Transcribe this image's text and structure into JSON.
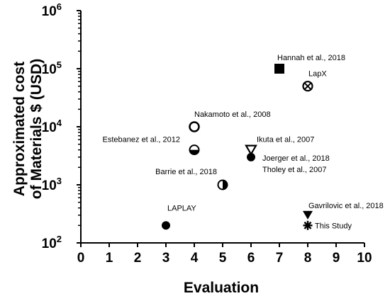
{
  "chart_data": {
    "type": "scatter",
    "title": "",
    "xlabel": "Evaluation",
    "ylabel_lines": [
      "Approximated cost",
      "of Materials $ (USD)"
    ],
    "xlim": [
      0,
      10
    ],
    "ylim": [
      100,
      1000000
    ],
    "yscale": "log",
    "x_ticks": [
      "0",
      "1",
      "2",
      "3",
      "4",
      "5",
      "6",
      "7",
      "8",
      "9",
      "10"
    ],
    "y_ticks": [
      {
        "base": "10",
        "exp": "2",
        "value": 100
      },
      {
        "base": "10",
        "exp": "3",
        "value": 1000
      },
      {
        "base": "10",
        "exp": "4",
        "value": 10000
      },
      {
        "base": "10",
        "exp": "5",
        "value": 100000
      },
      {
        "base": "10",
        "exp": "6",
        "value": 1000000
      }
    ],
    "grid": false,
    "legend": "none",
    "points": [
      {
        "label": "Hannah et al., 2018",
        "x": 7,
        "y": 100000,
        "marker": "square-filled"
      },
      {
        "label": "LapX",
        "x": 8,
        "y": 50000,
        "marker": "circle-cross"
      },
      {
        "label": "Nakamoto et al., 2008",
        "x": 4,
        "y": 10000,
        "marker": "circle-open"
      },
      {
        "label": "Estebanez et al., 2012",
        "x": 4,
        "y": 4000,
        "marker": "circle-half-bottom"
      },
      {
        "label": "Ikuta et al., 2007",
        "x": 6,
        "y": 4000,
        "marker": "triangle-down-open"
      },
      {
        "label": "Joerger et al., 2018",
        "x": 6,
        "y": 3000,
        "marker": "circle-filled"
      },
      {
        "label": "Tholey et al., 2007",
        "x": 6,
        "y": 3000,
        "marker": "none"
      },
      {
        "label": "Barrie et al., 2018",
        "x": 5,
        "y": 1000,
        "marker": "circle-half-right"
      },
      {
        "label": "LAPLAY",
        "x": 3,
        "y": 200,
        "marker": "circle-filled"
      },
      {
        "label": "Gavrilovic et al., 2018",
        "x": 8,
        "y": 300,
        "marker": "triangle-down-filled"
      },
      {
        "label": "This Study",
        "x": 8,
        "y": 200,
        "marker": "asterisk"
      }
    ],
    "colors": {
      "marker": "#000000",
      "axis": "#000000"
    }
  }
}
